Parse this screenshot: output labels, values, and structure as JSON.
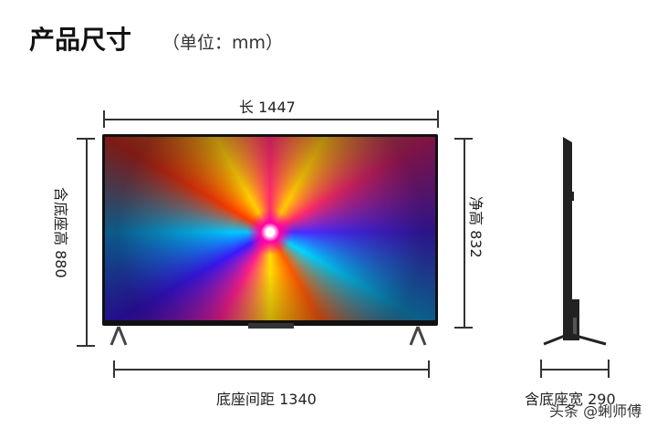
{
  "header": {
    "title": "产品尺寸",
    "unit": "（单位：mm）"
  },
  "dimensions": {
    "length": "长 1447",
    "net_height": "净高 832",
    "height_with_base": "含底座高 880",
    "base_spacing": "底座间距 1340",
    "depth_with_base": "含底座宽 290"
  },
  "watermark": "头条 @蜊师傅"
}
